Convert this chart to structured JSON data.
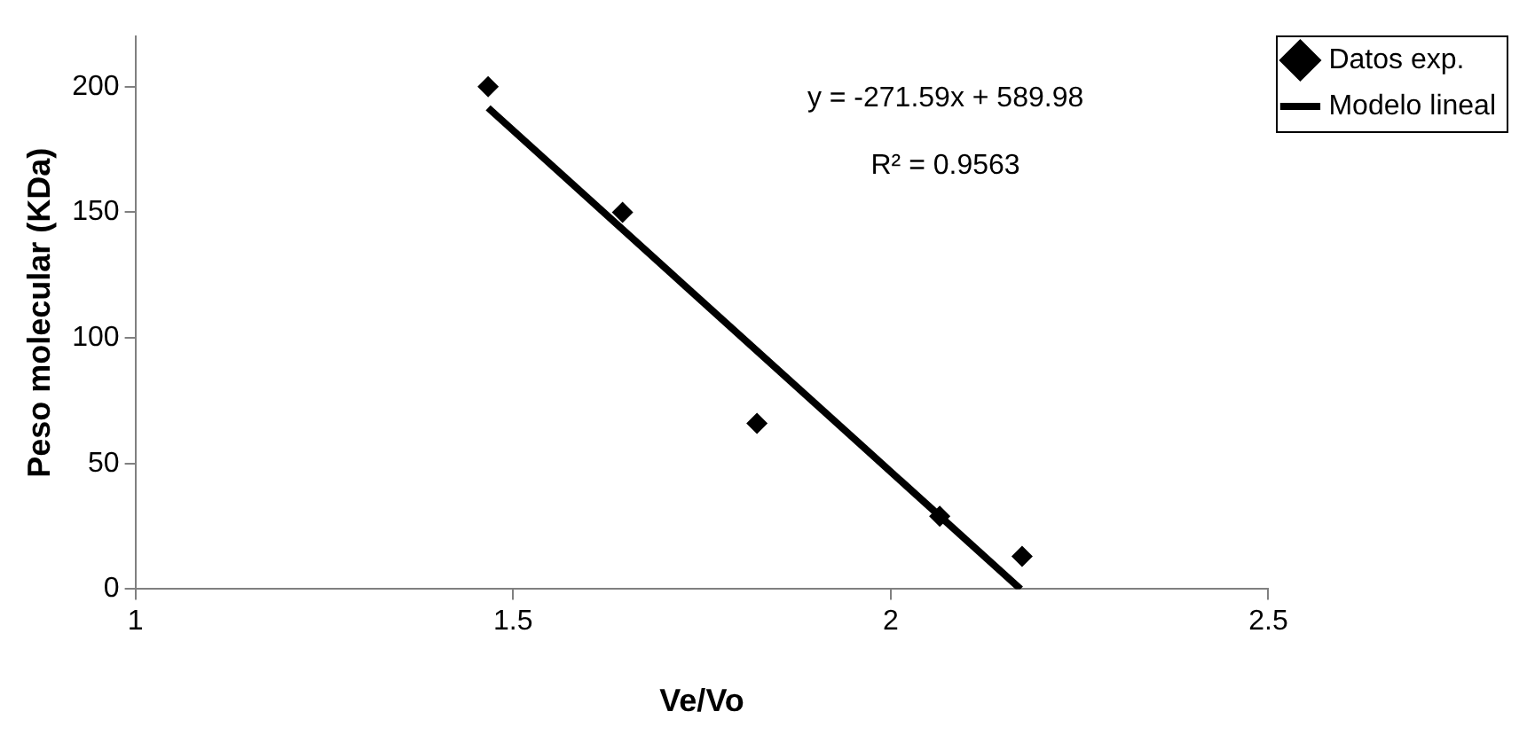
{
  "chart_data": {
    "type": "scatter",
    "xlabel": "Ve/Vo",
    "ylabel": "Peso molecular (KDa)",
    "xlim": [
      1,
      2.5
    ],
    "xticks": [
      1,
      1.5,
      2,
      2.5
    ],
    "ylim": [
      0,
      220
    ],
    "yticks": [
      0,
      50,
      100,
      150,
      200
    ],
    "grid": false,
    "legend": "top right",
    "marker": "diamond",
    "series": [
      {
        "name": "Datos exp.",
        "type": "scatter",
        "color": "#000000",
        "x": [
          1.467,
          1.645,
          1.823,
          2.065,
          2.174
        ],
        "values": [
          200,
          150,
          66,
          29,
          13
        ]
      },
      {
        "name": "Modelo lineal",
        "type": "line",
        "color": "#000000",
        "line_style": "solid",
        "marker": "none",
        "x": [
          1.467,
          2.172
        ],
        "values": [
          191.6,
          0
        ]
      }
    ],
    "annotations": [
      "y = -271.59x + 589.98",
      "R² = 0.9563"
    ]
  }
}
